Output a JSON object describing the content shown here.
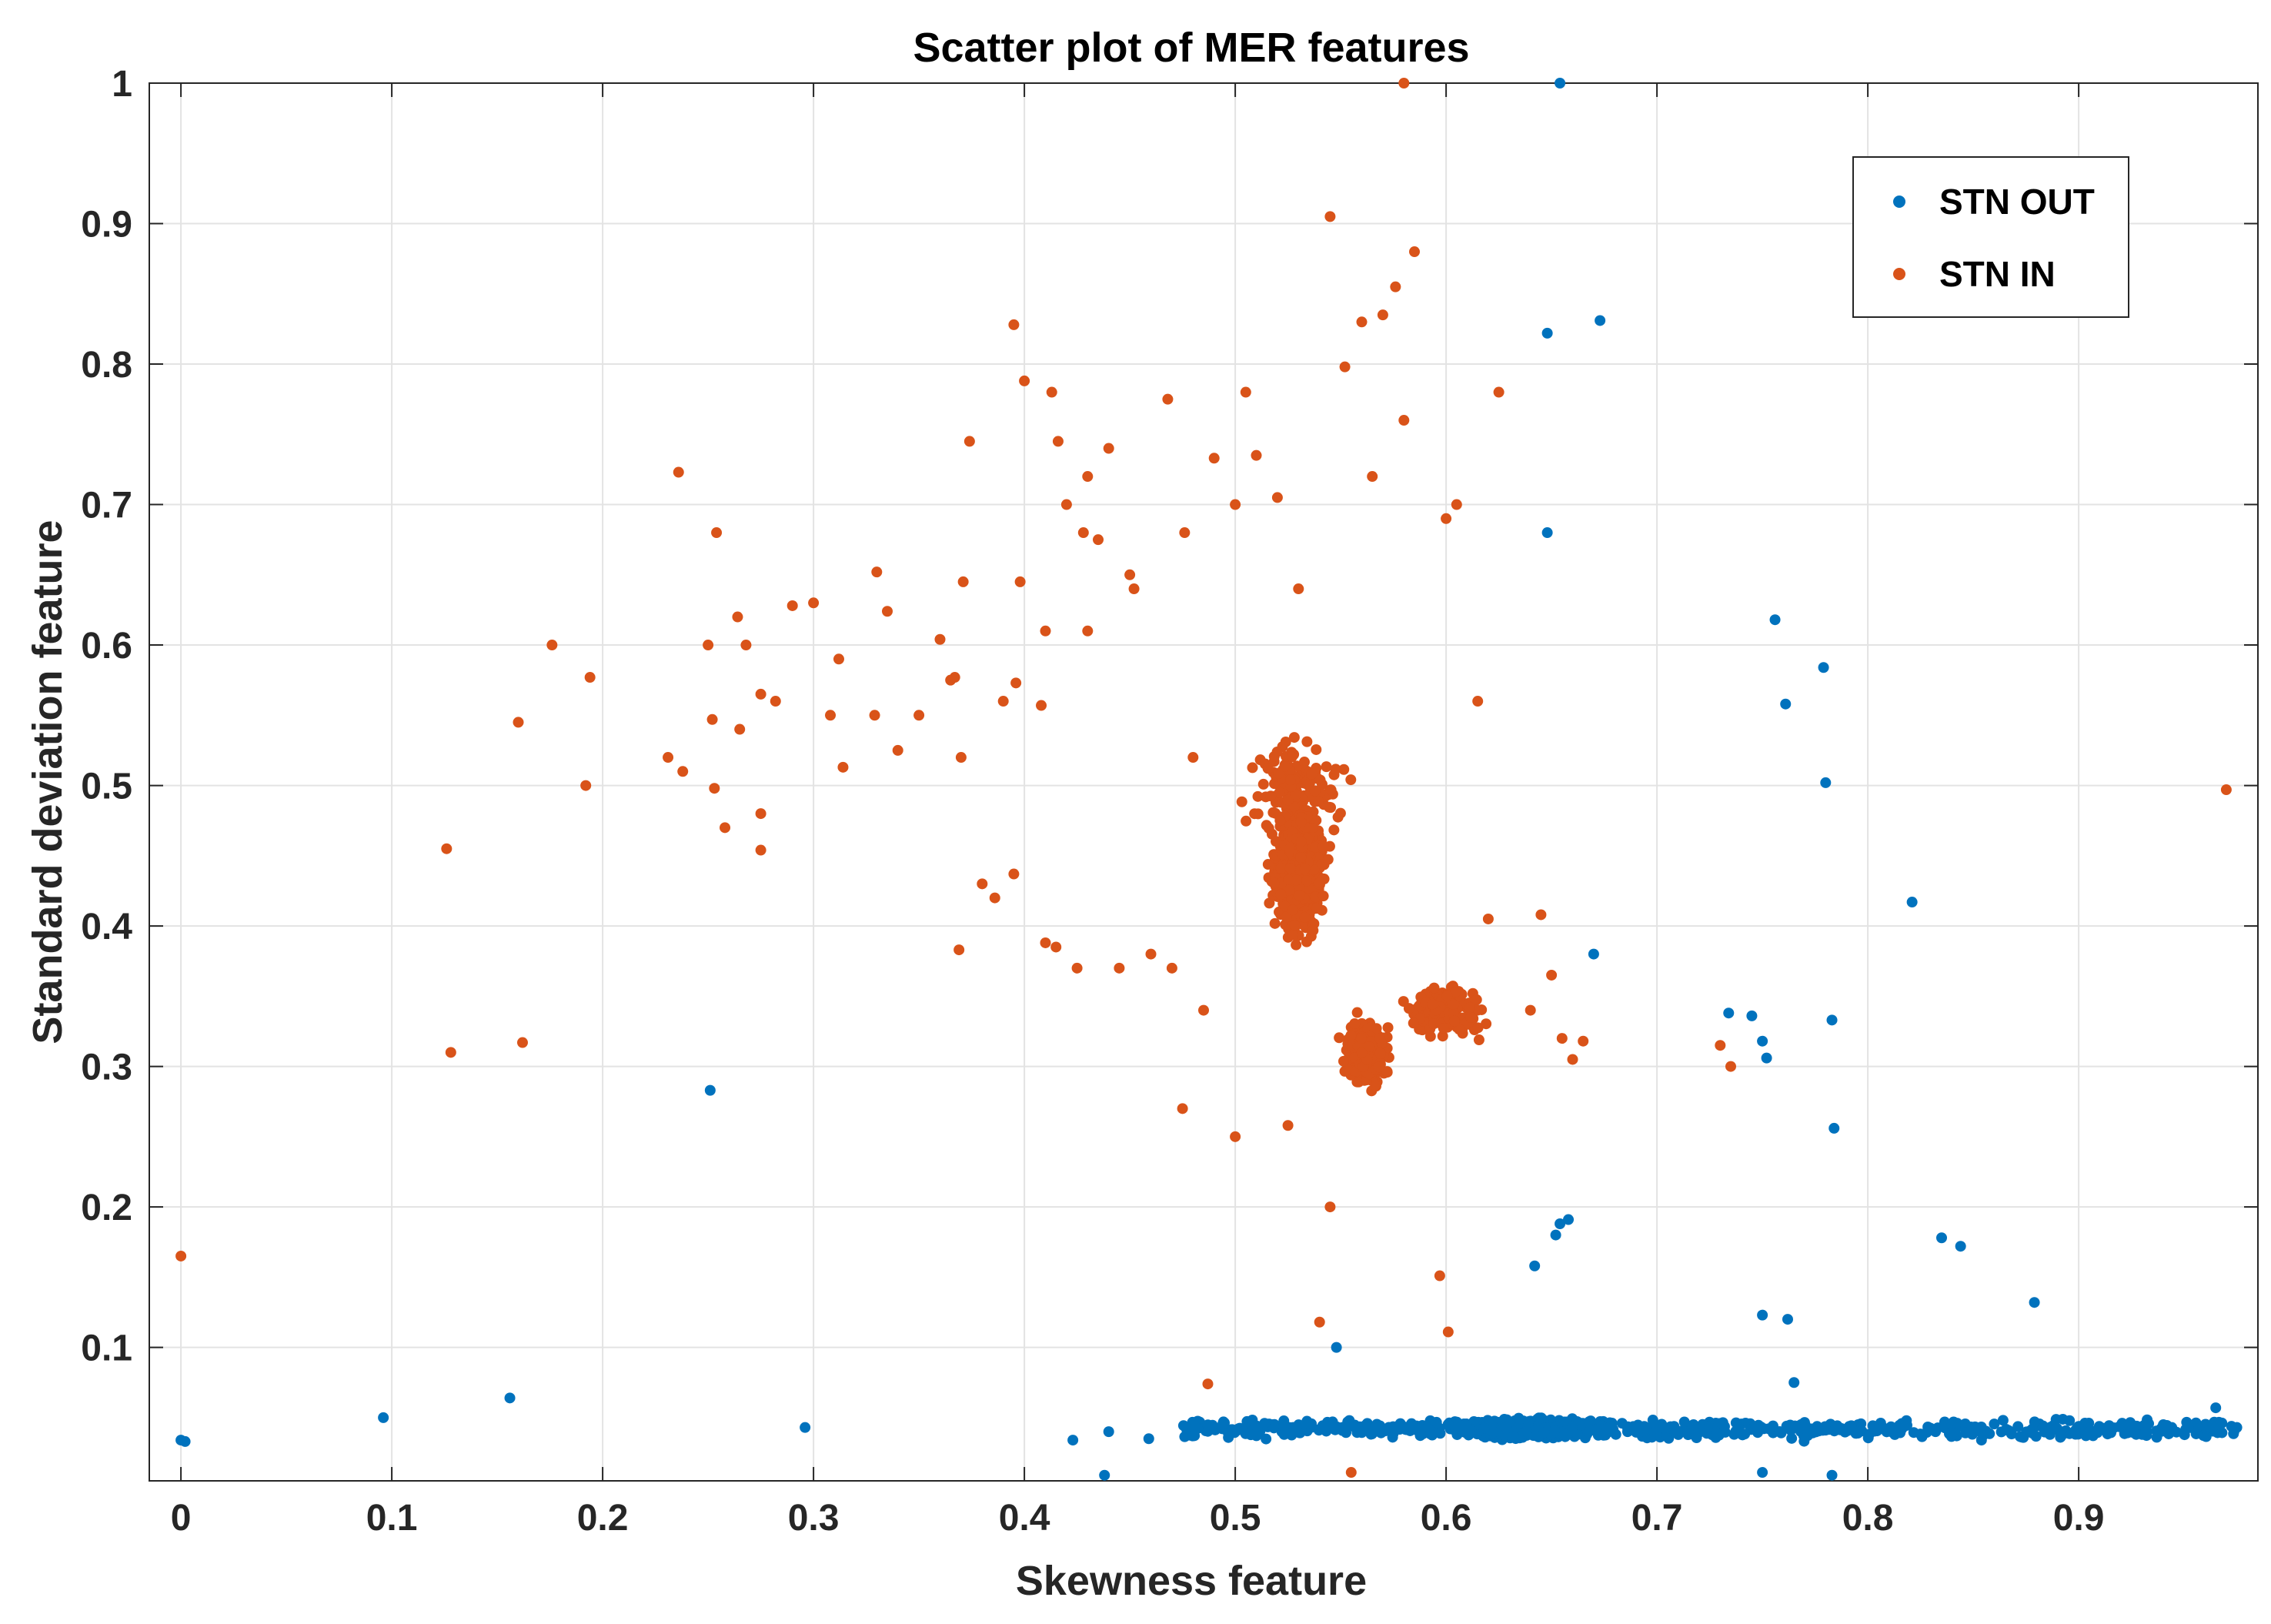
{
  "chart_data": {
    "type": "scatter",
    "title": "Scatter plot of MER features",
    "xlabel": "Skewness feature",
    "ylabel": "Standard deviation feature",
    "xlim": [
      -0.015,
      0.985
    ],
    "ylim": [
      0.005,
      1.0
    ],
    "xticks": [
      0,
      0.1,
      0.2,
      0.3,
      0.4,
      0.5,
      0.6,
      0.7,
      0.8,
      0.9
    ],
    "xtick_labels": [
      "0",
      "0.1",
      "0.2",
      "0.3",
      "0.4",
      "0.5",
      "0.6",
      "0.7",
      "0.8",
      "0.9"
    ],
    "yticks": [
      0.1,
      0.2,
      0.3,
      0.4,
      0.5,
      0.6,
      0.7,
      0.8,
      0.9,
      1.0
    ],
    "ytick_labels": [
      "0.1",
      "0.2",
      "0.3",
      "0.4",
      "0.5",
      "0.6",
      "0.7",
      "0.8",
      "0.9",
      "1"
    ],
    "grid": true,
    "legend_position": "top-right",
    "series": [
      {
        "name": "STN OUT",
        "color": "#0072BD",
        "points": [
          [
            0.0,
            0.034
          ],
          [
            0.002,
            0.033
          ],
          [
            0.096,
            0.05
          ],
          [
            0.156,
            0.064
          ],
          [
            0.296,
            0.043
          ],
          [
            0.251,
            0.283
          ],
          [
            0.423,
            0.034
          ],
          [
            0.438,
            0.009
          ],
          [
            0.44,
            0.04
          ],
          [
            0.459,
            0.035
          ],
          [
            0.548,
            0.1
          ],
          [
            0.654,
            1.0
          ],
          [
            0.648,
            0.822
          ],
          [
            0.673,
            0.831
          ],
          [
            0.648,
            0.68
          ],
          [
            0.67,
            0.38
          ],
          [
            0.756,
            0.618
          ],
          [
            0.761,
            0.558
          ],
          [
            0.779,
            0.584
          ],
          [
            0.78,
            0.502
          ],
          [
            0.821,
            0.417
          ],
          [
            0.734,
            0.338
          ],
          [
            0.745,
            0.336
          ],
          [
            0.75,
            0.318
          ],
          [
            0.752,
            0.306
          ],
          [
            0.783,
            0.333
          ],
          [
            0.784,
            0.256
          ],
          [
            0.654,
            0.188
          ],
          [
            0.658,
            0.191
          ],
          [
            0.652,
            0.18
          ],
          [
            0.642,
            0.158
          ],
          [
            0.835,
            0.178
          ],
          [
            0.844,
            0.172
          ],
          [
            0.879,
            0.132
          ],
          [
            0.75,
            0.123
          ],
          [
            0.762,
            0.12
          ],
          [
            0.75,
            0.011
          ],
          [
            0.783,
            0.009
          ],
          [
            0.765,
            0.075
          ],
          [
            0.975,
            0.043
          ],
          [
            0.965,
            0.057
          ]
        ],
        "cluster": {
          "x_range": [
            0.475,
            0.975
          ],
          "y_center": 0.042,
          "y_spread": 0.012,
          "count": 1400
        }
      },
      {
        "name": "STN IN",
        "color": "#D95319",
        "points": [
          [
            0.0,
            0.165
          ],
          [
            0.128,
            0.31
          ],
          [
            0.126,
            0.455
          ],
          [
            0.16,
            0.545
          ],
          [
            0.162,
            0.317
          ],
          [
            0.176,
            0.6
          ],
          [
            0.192,
            0.5
          ],
          [
            0.194,
            0.577
          ],
          [
            0.231,
            0.52
          ],
          [
            0.236,
            0.723
          ],
          [
            0.238,
            0.51
          ],
          [
            0.25,
            0.6
          ],
          [
            0.252,
            0.547
          ],
          [
            0.253,
            0.498
          ],
          [
            0.254,
            0.68
          ],
          [
            0.258,
            0.47
          ],
          [
            0.264,
            0.62
          ],
          [
            0.265,
            0.54
          ],
          [
            0.268,
            0.6
          ],
          [
            0.275,
            0.565
          ],
          [
            0.275,
            0.454
          ],
          [
            0.275,
            0.48
          ],
          [
            0.282,
            0.56
          ],
          [
            0.29,
            0.628
          ],
          [
            0.3,
            0.63
          ],
          [
            0.308,
            0.55
          ],
          [
            0.312,
            0.59
          ],
          [
            0.314,
            0.513
          ],
          [
            0.329,
            0.55
          ],
          [
            0.33,
            0.652
          ],
          [
            0.335,
            0.624
          ],
          [
            0.34,
            0.525
          ],
          [
            0.35,
            0.55
          ],
          [
            0.36,
            0.604
          ],
          [
            0.365,
            0.575
          ],
          [
            0.367,
            0.577
          ],
          [
            0.37,
            0.52
          ],
          [
            0.371,
            0.645
          ],
          [
            0.374,
            0.745
          ],
          [
            0.39,
            0.56
          ],
          [
            0.395,
            0.828
          ],
          [
            0.396,
            0.573
          ],
          [
            0.398,
            0.645
          ],
          [
            0.4,
            0.788
          ],
          [
            0.408,
            0.557
          ],
          [
            0.41,
            0.61
          ],
          [
            0.413,
            0.78
          ],
          [
            0.416,
            0.745
          ],
          [
            0.42,
            0.7
          ],
          [
            0.428,
            0.68
          ],
          [
            0.43,
            0.61
          ],
          [
            0.43,
            0.72
          ],
          [
            0.435,
            0.675
          ],
          [
            0.44,
            0.74
          ],
          [
            0.452,
            0.64
          ],
          [
            0.45,
            0.65
          ],
          [
            0.468,
            0.775
          ],
          [
            0.476,
            0.68
          ],
          [
            0.48,
            0.52
          ],
          [
            0.49,
            0.733
          ],
          [
            0.5,
            0.7
          ],
          [
            0.505,
            0.78
          ],
          [
            0.51,
            0.735
          ],
          [
            0.52,
            0.705
          ],
          [
            0.53,
            0.64
          ],
          [
            0.545,
            0.905
          ],
          [
            0.552,
            0.798
          ],
          [
            0.56,
            0.83
          ],
          [
            0.565,
            0.72
          ],
          [
            0.57,
            0.835
          ],
          [
            0.576,
            0.855
          ],
          [
            0.58,
            0.76
          ],
          [
            0.585,
            0.88
          ],
          [
            0.6,
            0.69
          ],
          [
            0.605,
            0.7
          ],
          [
            0.625,
            0.78
          ],
          [
            0.58,
            1.0
          ],
          [
            0.369,
            0.383
          ],
          [
            0.38,
            0.43
          ],
          [
            0.386,
            0.42
          ],
          [
            0.395,
            0.437
          ],
          [
            0.41,
            0.388
          ],
          [
            0.415,
            0.385
          ],
          [
            0.425,
            0.37
          ],
          [
            0.445,
            0.37
          ],
          [
            0.46,
            0.38
          ],
          [
            0.47,
            0.37
          ],
          [
            0.475,
            0.27
          ],
          [
            0.485,
            0.34
          ],
          [
            0.5,
            0.25
          ],
          [
            0.525,
            0.258
          ],
          [
            0.545,
            0.2
          ],
          [
            0.54,
            0.118
          ],
          [
            0.487,
            0.074
          ],
          [
            0.597,
            0.151
          ],
          [
            0.601,
            0.111
          ],
          [
            0.555,
            0.011
          ],
          [
            0.73,
            0.315
          ],
          [
            0.735,
            0.3
          ],
          [
            0.97,
            0.497
          ],
          [
            0.645,
            0.408
          ],
          [
            0.65,
            0.365
          ],
          [
            0.615,
            0.56
          ],
          [
            0.62,
            0.405
          ],
          [
            0.64,
            0.34
          ],
          [
            0.655,
            0.32
          ],
          [
            0.66,
            0.305
          ],
          [
            0.665,
            0.318
          ]
        ],
        "cluster": {
          "x_range": [
            0.48,
            0.66
          ],
          "y_center": 0.43,
          "y_spread": 0.075,
          "count": 1500
        }
      }
    ]
  },
  "legend": {
    "items": [
      {
        "label": "STN OUT",
        "color": "#0072BD"
      },
      {
        "label": "STN IN",
        "color": "#D95319"
      }
    ]
  }
}
